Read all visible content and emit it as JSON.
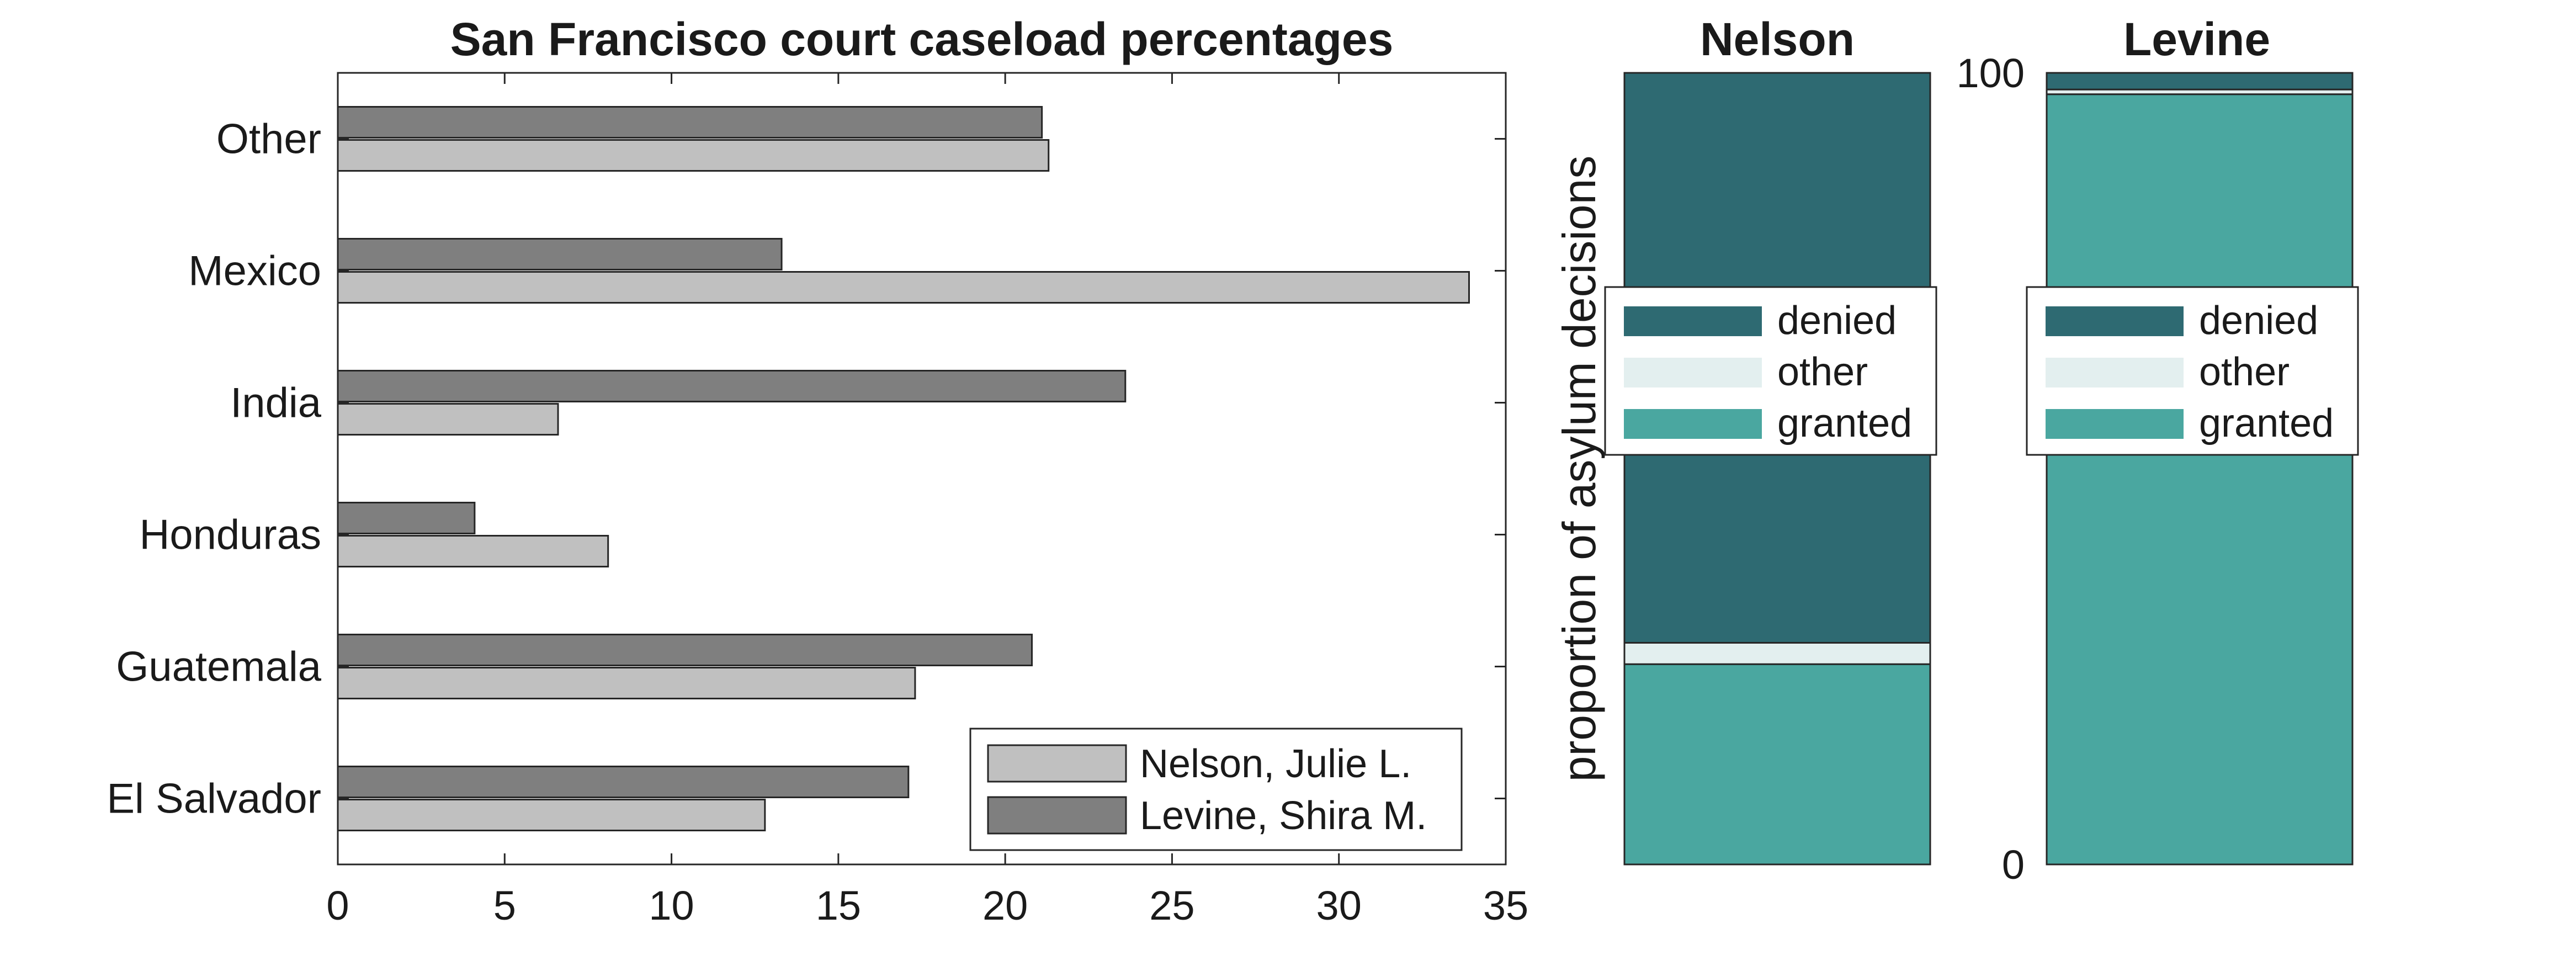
{
  "colors": {
    "nelson_bar": "#c0c0c0",
    "levine_bar": "#7f7f7f",
    "denied": "#2e6a72",
    "other": "#e3efef",
    "granted": "#4aa7a0",
    "axis": "#262626"
  },
  "chart_data": [
    {
      "type": "bar",
      "orientation": "horizontal",
      "title": "San Francisco court caseload percentages",
      "xlabel": "",
      "ylabel": "",
      "categories": [
        "El Salvador",
        "Guatemala",
        "Honduras",
        "India",
        "Mexico",
        "Other"
      ],
      "xlim": [
        0,
        35
      ],
      "xticks": [
        0,
        5,
        10,
        15,
        20,
        25,
        30,
        35
      ],
      "series": [
        {
          "name": "Nelson, Julie L.",
          "values": [
            12.8,
            17.3,
            8.1,
            6.6,
            33.9,
            21.3
          ]
        },
        {
          "name": "Levine, Shira M.",
          "values": [
            17.1,
            20.8,
            4.1,
            23.6,
            13.3,
            21.1
          ]
        }
      ],
      "legend": "bottom-right",
      "grid": false
    },
    {
      "type": "bar",
      "stacked": true,
      "title": "Nelson",
      "ylabel": "proportion of asylum decisions",
      "ylim": [
        0,
        100
      ],
      "series": [
        {
          "name": "granted",
          "value": 25.3
        },
        {
          "name": "other",
          "value": 2.7
        },
        {
          "name": "denied",
          "value": 72.0
        }
      ],
      "legend": [
        "denied",
        "other",
        "granted"
      ],
      "legend_placement": "center"
    },
    {
      "type": "bar",
      "stacked": true,
      "title": "Levine",
      "yticks": [
        0,
        100
      ],
      "ylim": [
        0,
        100
      ],
      "series": [
        {
          "name": "granted",
          "value": 97.3
        },
        {
          "name": "other",
          "value": 0.6
        },
        {
          "name": "denied",
          "value": 2.1
        }
      ],
      "legend": [
        "denied",
        "other",
        "granted"
      ],
      "legend_placement": "center"
    }
  ]
}
